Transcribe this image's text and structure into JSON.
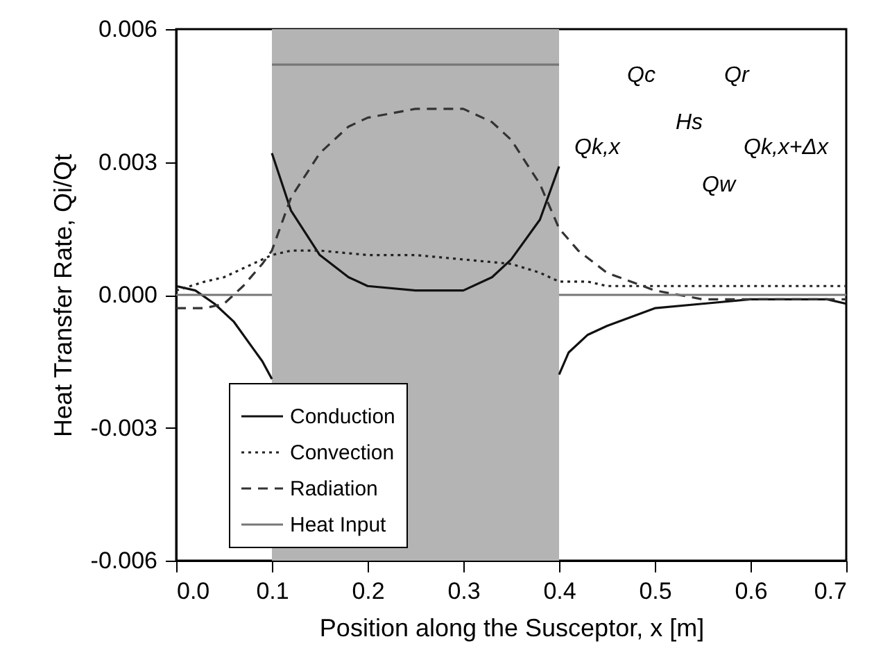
{
  "chart_data": {
    "type": "line",
    "xlabel": "Position along the Susceptor, x  [m]",
    "ylabel": "Heat Transfer Rate, Qi/Qt",
    "xlim": [
      0,
      0.7
    ],
    "xticks": [
      {
        "value": 0,
        "label": "0.0"
      },
      0.1,
      0.2,
      0.3,
      0.4,
      0.5,
      0.6,
      0.7
    ],
    "ylim": [
      -0.006,
      0.006
    ],
    "yticks": [
      -0.006,
      -0.003,
      {
        "value": 0,
        "label": "0.000"
      },
      0.003,
      0.006
    ],
    "grid": false,
    "legend": "bottom",
    "bands": [
      {
        "axis": "x",
        "from": 0.1,
        "to": 0.4,
        "color": "#b4b4b4"
      }
    ],
    "annotations": [
      "Qc",
      "Qr",
      "Hs",
      "Qk,x",
      "Qk,x+Δx",
      "Qw"
    ],
    "series": [
      {
        "name": "Conduction",
        "color": "#111111",
        "line_style": "solid",
        "x": [
          0,
          0.02,
          0.04,
          0.06,
          0.08,
          0.09,
          0.1,
          null,
          0.1,
          0.12,
          0.15,
          0.18,
          0.2,
          0.25,
          0.3,
          0.33,
          0.35,
          0.38,
          0.4,
          null,
          0.4,
          0.41,
          0.43,
          0.45,
          0.5,
          0.55,
          0.6,
          0.65,
          0.68,
          0.7
        ],
        "values": [
          0.0002,
          0.0001,
          -0.0002,
          -0.0006,
          -0.0012,
          -0.0015,
          -0.0019,
          null,
          0.0032,
          0.0019,
          0.0009,
          0.0004,
          0.0002,
          0.0001,
          0.0001,
          0.0004,
          0.0008,
          0.0017,
          0.0029,
          null,
          -0.0018,
          -0.0013,
          -0.0009,
          -0.0007,
          -0.0003,
          -0.0002,
          -0.0001,
          -0.0001,
          -0.0001,
          -0.0002
        ]
      },
      {
        "name": "Convection",
        "color": "#222222",
        "line_style": "dotted",
        "x": [
          0,
          0.03,
          0.05,
          0.08,
          0.1,
          0.12,
          0.15,
          0.2,
          0.25,
          0.3,
          0.35,
          0.38,
          0.4,
          0.43,
          0.45,
          0.5,
          0.6,
          0.7
        ],
        "values": [
          0.0001,
          0.0003,
          0.0004,
          0.0007,
          0.0009,
          0.001,
          0.001,
          0.0009,
          0.0009,
          0.0008,
          0.0007,
          0.0005,
          0.0003,
          0.0003,
          0.0002,
          0.0002,
          0.0002,
          0.0002
        ]
      },
      {
        "name": "Radiation",
        "color": "#333333",
        "line_style": "dashed",
        "x": [
          0,
          0.03,
          0.05,
          0.07,
          0.09,
          0.1,
          0.12,
          0.15,
          0.18,
          0.2,
          0.25,
          0.3,
          0.33,
          0.35,
          0.38,
          0.4,
          0.42,
          0.45,
          0.5,
          0.55,
          0.6,
          0.7
        ],
        "values": [
          -0.0003,
          -0.0003,
          -0.0002,
          0.0002,
          0.0007,
          0.001,
          0.0022,
          0.0032,
          0.0038,
          0.004,
          0.0042,
          0.0042,
          0.0039,
          0.0035,
          0.0025,
          0.0015,
          0.001,
          0.0005,
          0.0001,
          -0.0001,
          -0.0001,
          -0.0001
        ]
      },
      {
        "name": "Heat Input",
        "color": "#777777",
        "line_style": "solid",
        "x": [
          0,
          0.1,
          null,
          0.1,
          0.4,
          null,
          0.4,
          0.7
        ],
        "values": [
          0,
          0,
          null,
          0.0052,
          0.0052,
          null,
          0,
          0
        ]
      }
    ]
  }
}
